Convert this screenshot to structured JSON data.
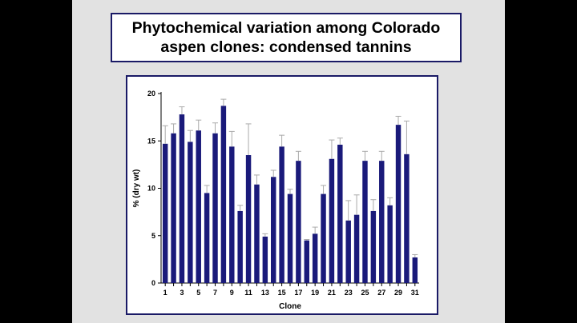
{
  "slide": {
    "title_line1": "Phytochemical variation among Colorado",
    "title_line2": "aspen clones: condensed tannins"
  },
  "chart_data": {
    "type": "bar",
    "xlabel": "Clone",
    "ylabel": "% (dry wt)",
    "ylim": [
      0,
      20
    ],
    "yticks": [
      0,
      5,
      10,
      15,
      20
    ],
    "categories": [
      "1",
      "2",
      "3",
      "4",
      "5",
      "6",
      "7",
      "8",
      "9",
      "10",
      "11",
      "12",
      "13",
      "14",
      "15",
      "16",
      "17",
      "18",
      "19",
      "20",
      "21",
      "22",
      "23",
      "24",
      "25",
      "26",
      "27",
      "28",
      "29",
      "30",
      "31"
    ],
    "xtick_labels": [
      "1",
      "3",
      "5",
      "7",
      "9",
      "11",
      "13",
      "15",
      "17",
      "19",
      "21",
      "23",
      "25",
      "27",
      "29",
      "31"
    ],
    "values": [
      14.7,
      15.8,
      17.8,
      14.9,
      16.1,
      9.5,
      15.8,
      18.7,
      14.4,
      7.6,
      13.5,
      10.4,
      4.9,
      11.2,
      14.4,
      9.4,
      12.9,
      4.5,
      5.2,
      9.4,
      13.1,
      14.6,
      6.6,
      7.2,
      12.9,
      7.6,
      12.9,
      8.2,
      16.7,
      13.6,
      2.7
    ],
    "errors": [
      1.9,
      1.0,
      0.8,
      1.2,
      1.1,
      0.8,
      1.1,
      0.7,
      1.6,
      0.6,
      3.3,
      1.0,
      0.3,
      0.7,
      1.2,
      0.5,
      1.0,
      0.1,
      0.7,
      0.9,
      2.0,
      0.7,
      2.1,
      2.1,
      1.0,
      1.2,
      1.0,
      0.8,
      0.9,
      3.5,
      0.3
    ],
    "bar_color": "#1a1a7a",
    "error_color": "#aaaaaa",
    "grid": false
  }
}
